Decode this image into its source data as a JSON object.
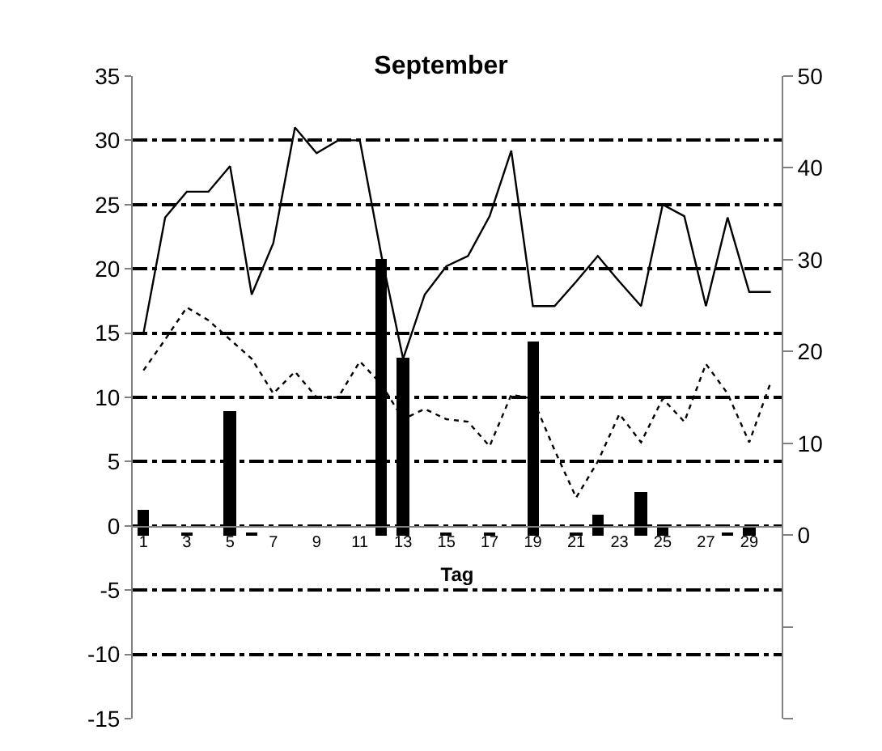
{
  "chart_data": {
    "type": "line",
    "title": "September",
    "xlabel": "Tag",
    "x": [
      1,
      2,
      3,
      4,
      5,
      6,
      7,
      8,
      9,
      10,
      11,
      12,
      13,
      14,
      15,
      16,
      17,
      18,
      19,
      20,
      21,
      22,
      23,
      24,
      25,
      26,
      27,
      28,
      29,
      30
    ],
    "xlim": [
      0.5,
      30.5
    ],
    "xticks": [
      1,
      3,
      5,
      7,
      9,
      11,
      13,
      15,
      17,
      19,
      21,
      23,
      25,
      27,
      29
    ],
    "ylim": [
      -15,
      35
    ],
    "yticks": [
      -15,
      -10,
      -5,
      0,
      5,
      10,
      15,
      20,
      25,
      30,
      35
    ],
    "y2lim": [
      -20,
      50
    ],
    "y2ticks": [
      {
        "value": -20,
        "label": null
      },
      {
        "value": -10,
        "label": null
      },
      0,
      10,
      20,
      30,
      40,
      50
    ],
    "grid": "y",
    "legend": false,
    "series": [
      {
        "type": "bar",
        "axis": "y2",
        "color": "#000000",
        "values": [
          2.8,
          0,
          0.3,
          0,
          13.5,
          0.3,
          0,
          0,
          0,
          0,
          0,
          30,
          19.3,
          0,
          0.3,
          0,
          0.3,
          0,
          21,
          0,
          0.3,
          2.3,
          0,
          4.7,
          1,
          0,
          0,
          0.3,
          0.8,
          0
        ]
      },
      {
        "line_style": "solid",
        "color": "#000000",
        "values": [
          15,
          24,
          26,
          26,
          28,
          18,
          22,
          31,
          29,
          30,
          30,
          21,
          13,
          18,
          20.2,
          21,
          24.1,
          29.2,
          17.1,
          17.1,
          19,
          21,
          19,
          17.1,
          25,
          24.1,
          17.1,
          24,
          18.2,
          18.2
        ]
      },
      {
        "line_style": "dotted",
        "color": "#000000",
        "values": [
          12.1,
          14.5,
          17,
          16,
          14.5,
          13,
          10.3,
          12,
          10,
          10,
          12.8,
          11,
          8.3,
          9.1,
          8.3,
          8.1,
          6.2,
          10.2,
          9.9,
          5.9,
          2.2,
          5,
          8.7,
          6.5,
          9.9,
          8.1,
          12.6,
          10.3,
          6.5,
          11.2
        ]
      }
    ]
  }
}
